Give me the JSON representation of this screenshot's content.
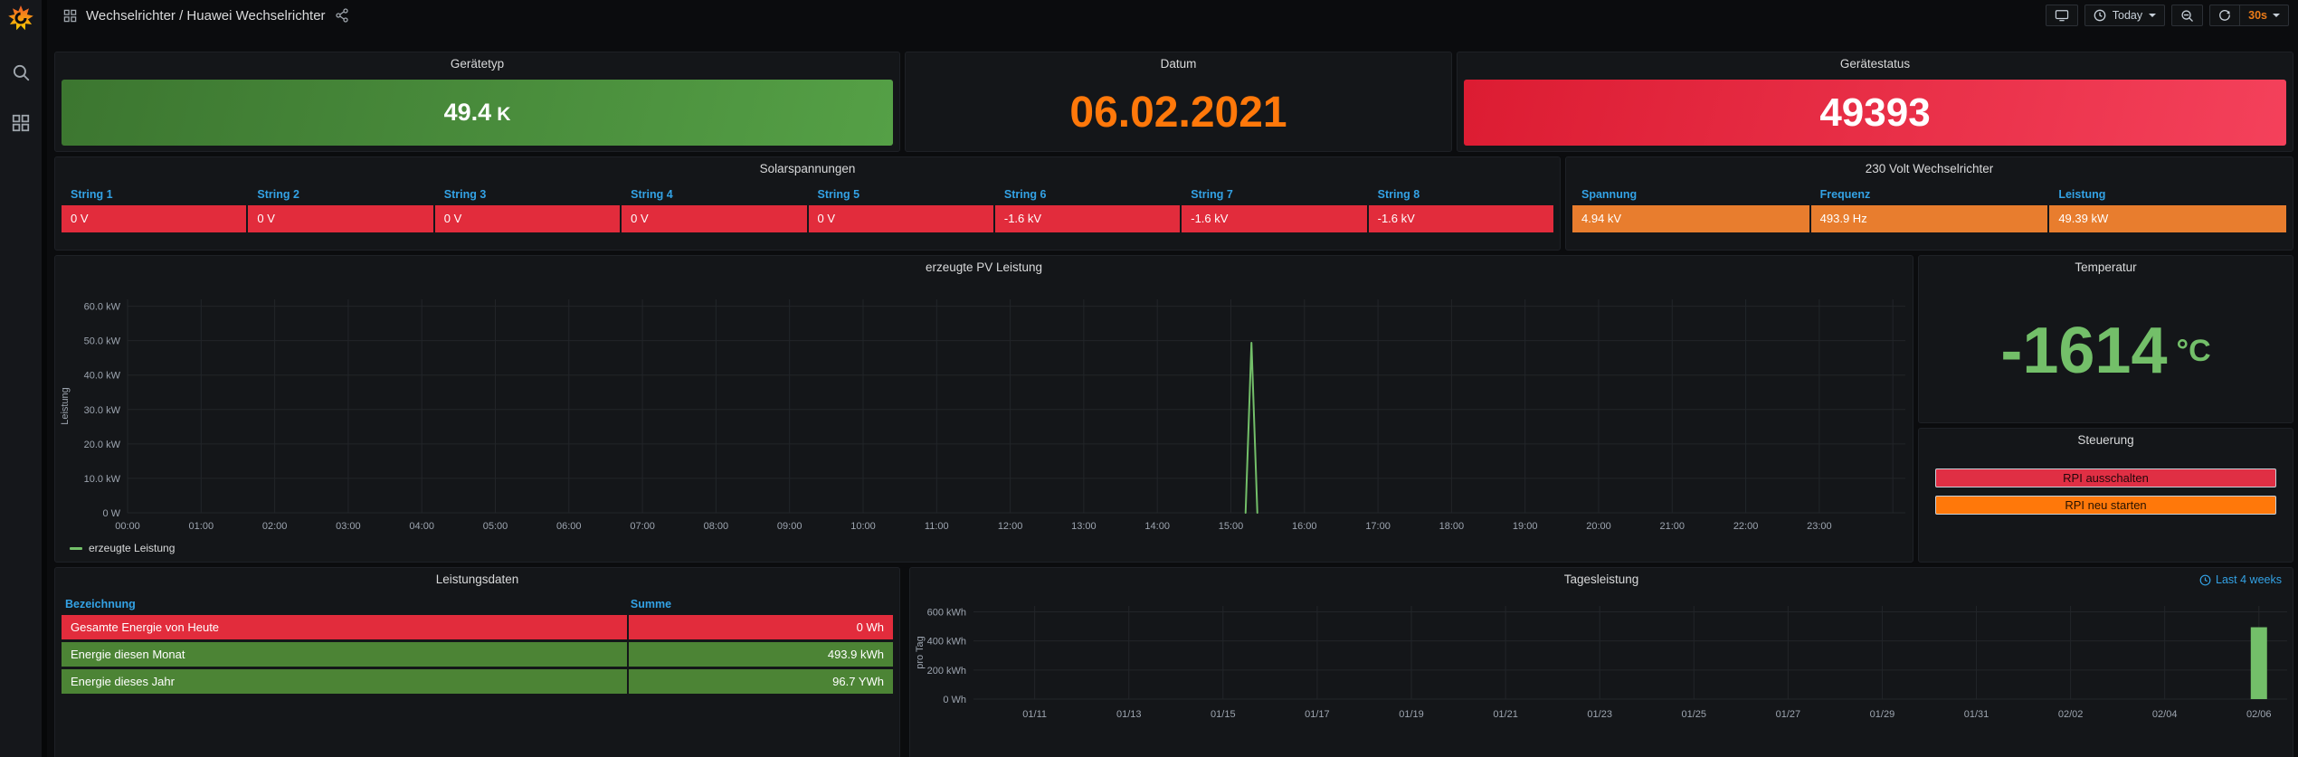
{
  "nav": {
    "title": "Wechselrichter / Huawei Wechselrichter",
    "time_range": "Today",
    "refresh_interval": "30s"
  },
  "icons": {
    "sidebar": [
      "grafana-logo",
      "search",
      "dashboards-grid"
    ],
    "nav_left": [
      "apps-grid",
      "share-alt"
    ],
    "nav_right": [
      "tv",
      "clock",
      "caret-down",
      "zoom-out",
      "refresh",
      "caret-down"
    ]
  },
  "colors": {
    "header_blue": "#33a2e5",
    "cell_red": "#e22c3c",
    "cell_green": "#4c8435",
    "cell_orange": "#e87d2e",
    "value_orange": "#ff780a",
    "temp_green": "#73bf69",
    "series_green": "#73bf69",
    "interval_orange": "#eb7b18"
  },
  "stats": {
    "geraetetyp": {
      "title": "Gerätetyp",
      "value": "49.4",
      "suffix": "K",
      "bg": [
        "#3c7630",
        "#55a046"
      ]
    },
    "datum": {
      "title": "Datum",
      "value": "06.02.2021",
      "color": "#ff780a"
    },
    "geraetestatus": {
      "title": "Gerätestatus",
      "value": "49393",
      "bg": [
        "#dc1c32",
        "#f4415b"
      ]
    }
  },
  "solar": {
    "title": "Solarspannungen",
    "columns": [
      {
        "label": "String 1",
        "value": "0 V",
        "bg": "#e22c3c"
      },
      {
        "label": "String 2",
        "value": "0 V",
        "bg": "#e22c3c"
      },
      {
        "label": "String 3",
        "value": "0 V",
        "bg": "#e22c3c"
      },
      {
        "label": "String 4",
        "value": "0 V",
        "bg": "#e22c3c"
      },
      {
        "label": "String 5",
        "value": "0 V",
        "bg": "#e22c3c"
      },
      {
        "label": "String 6",
        "value": "-1.6 kV",
        "bg": "#e22c3c"
      },
      {
        "label": "String 7",
        "value": "-1.6 kV",
        "bg": "#e22c3c"
      },
      {
        "label": "String 8",
        "value": "-1.6 kV",
        "bg": "#e22c3c"
      }
    ]
  },
  "wr230": {
    "title": "230 Volt Wechselrichter",
    "columns": [
      {
        "label": "Spannung",
        "value": "4.94 kV",
        "bg": "#e87d2e"
      },
      {
        "label": "Frequenz",
        "value": "493.9 Hz",
        "bg": "#e87d2e"
      },
      {
        "label": "Leistung",
        "value": "49.39 kW",
        "bg": "#e87d2e"
      }
    ]
  },
  "temperatur": {
    "title": "Temperatur",
    "value": "-1614",
    "unit": "°C"
  },
  "steuerung": {
    "title": "Steuerung",
    "buttons": [
      {
        "label": "RPI ausschalten",
        "bg": "#e02f44"
      },
      {
        "label": "RPI neu starten",
        "bg": "#ff780a"
      }
    ]
  },
  "leistungsdaten": {
    "title": "Leistungsdaten",
    "col1": "Bezeichnung",
    "col2": "Summe",
    "rows": [
      {
        "label": "Gesamte Energie von Heute",
        "value": "0 Wh",
        "bg": "#e22c3c"
      },
      {
        "label": "Energie diesen Monat",
        "value": "493.9 kWh",
        "bg": "#4c8435"
      },
      {
        "label": "Energie dieses Jahr",
        "value": "96.7 YWh",
        "bg": "#4c8435"
      }
    ]
  },
  "chart_data": [
    {
      "type": "line",
      "title": "erzeugte PV Leistung",
      "ylabel": "Leistung",
      "x_range": [
        0,
        24.17
      ],
      "y_range": [
        0,
        62
      ],
      "x_grid_extra": [
        24
      ],
      "x_ticks": [
        {
          "v": 0,
          "label": "00:00"
        },
        {
          "v": 1,
          "label": "01:00"
        },
        {
          "v": 2,
          "label": "02:00"
        },
        {
          "v": 3,
          "label": "03:00"
        },
        {
          "v": 4,
          "label": "04:00"
        },
        {
          "v": 5,
          "label": "05:00"
        },
        {
          "v": 6,
          "label": "06:00"
        },
        {
          "v": 7,
          "label": "07:00"
        },
        {
          "v": 8,
          "label": "08:00"
        },
        {
          "v": 9,
          "label": "09:00"
        },
        {
          "v": 10,
          "label": "10:00"
        },
        {
          "v": 11,
          "label": "11:00"
        },
        {
          "v": 12,
          "label": "12:00"
        },
        {
          "v": 13,
          "label": "13:00"
        },
        {
          "v": 14,
          "label": "14:00"
        },
        {
          "v": 15,
          "label": "15:00"
        },
        {
          "v": 16,
          "label": "16:00"
        },
        {
          "v": 17,
          "label": "17:00"
        },
        {
          "v": 18,
          "label": "18:00"
        },
        {
          "v": 19,
          "label": "19:00"
        },
        {
          "v": 20,
          "label": "20:00"
        },
        {
          "v": 21,
          "label": "21:00"
        },
        {
          "v": 22,
          "label": "22:00"
        },
        {
          "v": 23,
          "label": "23:00"
        }
      ],
      "y_ticks": [
        {
          "v": 0,
          "label": "0 W"
        },
        {
          "v": 10,
          "label": "10.0 kW"
        },
        {
          "v": 20,
          "label": "20.0 kW"
        },
        {
          "v": 30,
          "label": "30.0 kW"
        },
        {
          "v": 40,
          "label": "40.0 kW"
        },
        {
          "v": 50,
          "label": "50.0 kW"
        },
        {
          "v": 60,
          "label": "60.0 kW"
        }
      ],
      "series": [
        {
          "name": "erzeugte Leistung",
          "color": "#73bf69",
          "points": [
            [
              15.2,
              0
            ],
            [
              15.28,
              49.4
            ],
            [
              15.36,
              0
            ]
          ]
        }
      ]
    },
    {
      "type": "bar",
      "title": "Tagesleistung",
      "ylabel": "pro Tag",
      "time_range": "Last 4 weeks",
      "x_range": [
        0.7,
        28.6
      ],
      "y_range": [
        0,
        640
      ],
      "x_ticks": [
        {
          "v": 2,
          "label": "01/11"
        },
        {
          "v": 4,
          "label": "01/13"
        },
        {
          "v": 6,
          "label": "01/15"
        },
        {
          "v": 8,
          "label": "01/17"
        },
        {
          "v": 10,
          "label": "01/19"
        },
        {
          "v": 12,
          "label": "01/21"
        },
        {
          "v": 14,
          "label": "01/23"
        },
        {
          "v": 16,
          "label": "01/25"
        },
        {
          "v": 18,
          "label": "01/27"
        },
        {
          "v": 20,
          "label": "01/29"
        },
        {
          "v": 22,
          "label": "01/31"
        },
        {
          "v": 24,
          "label": "02/02"
        },
        {
          "v": 26,
          "label": "02/04"
        },
        {
          "v": 28,
          "label": "02/06"
        }
      ],
      "y_ticks": [
        {
          "v": 0,
          "label": "0 Wh"
        },
        {
          "v": 200,
          "label": "200 kWh"
        },
        {
          "v": 400,
          "label": "400 kWh"
        },
        {
          "v": 600,
          "label": "600 kWh"
        }
      ],
      "bars": [
        {
          "x": 28,
          "value": 493.9,
          "color": "#73bf69"
        }
      ]
    }
  ]
}
